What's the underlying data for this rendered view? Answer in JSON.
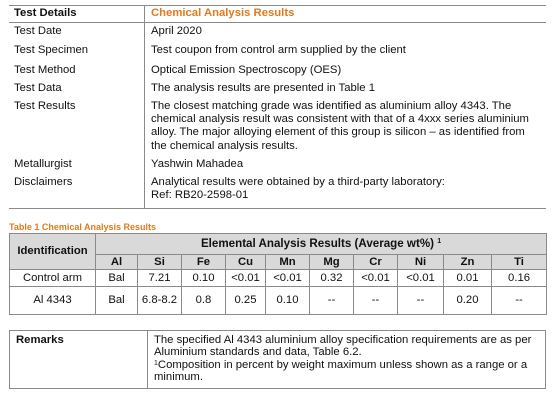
{
  "details": {
    "header_label": "Test Details",
    "header_value": "Chemical Analysis Results",
    "rows": [
      {
        "label": "Test Date",
        "value": "April 2020"
      },
      {
        "label": "Test Specimen",
        "value": "Test coupon from control arm supplied by the client"
      },
      {
        "label": "Test Method",
        "value": "Optical Emission Spectroscopy (OES)"
      },
      {
        "label": "Test Data",
        "value": "The analysis results are presented in Table 1"
      },
      {
        "label": "Test Results",
        "value": "The closest matching grade was identified as aluminium alloy 4343. The chemical analysis result was consistent with that of a 4xxx series aluminium alloy. The major alloying element of this group is silicon – as identified from the chemical analysis results."
      },
      {
        "label": "Metallurgist",
        "value": "Yashwin Mahadea"
      },
      {
        "label": "Disclaimers",
        "value_line1": "Analytical results were obtained by a third-party laboratory:",
        "value_line2": "Ref: RB20-2598-01"
      }
    ]
  },
  "table1": {
    "caption": "Table 1 Chemical Analysis Results",
    "identification_header": "Identification",
    "group_header": "Elemental Analysis Results (Average wt%)",
    "group_header_sup": "1",
    "elements": [
      "Al",
      "Si",
      "Fe",
      "Cu",
      "Mn",
      "Mg",
      "Cr",
      "Ni",
      "Zn",
      "Ti"
    ],
    "rows": [
      {
        "name": "Control arm",
        "values": [
          "Bal",
          "7.21",
          "0.10",
          "<0.01",
          "<0.01",
          "0.32",
          "<0.01",
          "<0.01",
          "0.01",
          "0.16"
        ]
      },
      {
        "name": "Al 4343",
        "values": [
          "Bal",
          "6.8-8.2",
          "0.8",
          "0.25",
          "0.10",
          "--",
          "--",
          "--",
          "0.20",
          "--"
        ]
      }
    ]
  },
  "remarks": {
    "label": "Remarks",
    "text": "The specified Al 4343 aluminium alloy specification requirements are as per Aluminium standards and data, Table 6.2.",
    "footnote_mark": "1",
    "footnote": "Composition in percent by weight maximum unless shown as a range or a minimum."
  },
  "colors": {
    "accent": "#e07a1f",
    "header_grey": "#d9d9d9",
    "border": "#8a8a8a"
  }
}
